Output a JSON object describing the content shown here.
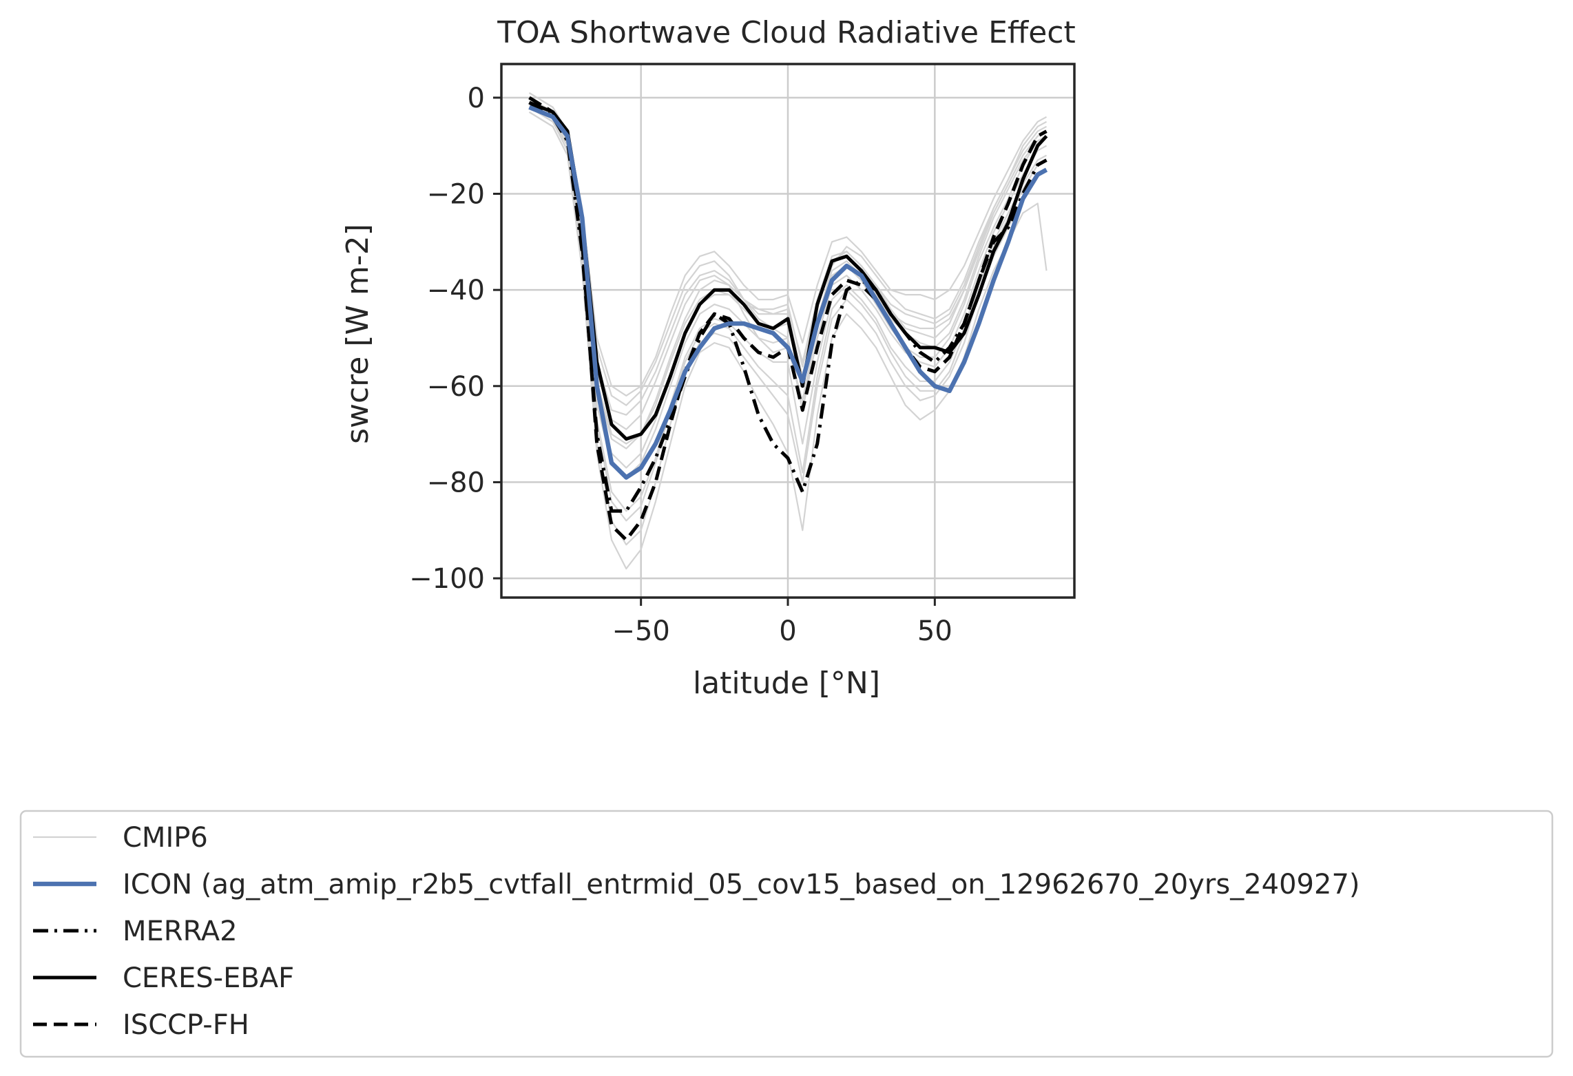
{
  "chart_data": {
    "type": "line",
    "title": "TOA Shortwave Cloud Radiative Effect",
    "xlabel": "latitude [°N]",
    "ylabel": "swcre [W m-2]",
    "xlim": [
      -97.5,
      97.5
    ],
    "ylim": [
      -104,
      7
    ],
    "xticks": [
      -50,
      0,
      50
    ],
    "xtick_labels": [
      "−50",
      "0",
      "50"
    ],
    "yticks": [
      0,
      -20,
      -40,
      -60,
      -80,
      -100
    ],
    "ytick_labels": [
      "0",
      "−20",
      "−40",
      "−60",
      "−80",
      "−100"
    ],
    "grid": true,
    "legend_position": "bottom",
    "colors": {
      "cmip6": "#d3d3d3",
      "icon": "#4c72b0",
      "obs": "#000000",
      "grid": "#cccccc",
      "axes": "#262626"
    },
    "legend": [
      {
        "label": "CMIP6",
        "key": "cmip6"
      },
      {
        "label": "ICON (ag_atm_amip_r2b5_cvtfall_entrmid_05_cov15_based_on_12962670_20yrs_240927)",
        "key": "icon"
      },
      {
        "label": "MERRA2",
        "key": "merra2"
      },
      {
        "label": "CERES-EBAF",
        "key": "ceres"
      },
      {
        "label": "ISCCP-FH",
        "key": "isccp"
      }
    ],
    "x": [
      -88,
      -80,
      -75,
      -70,
      -65,
      -60,
      -55,
      -50,
      -45,
      -40,
      -35,
      -30,
      -25,
      -20,
      -15,
      -10,
      -5,
      0,
      5,
      10,
      15,
      20,
      25,
      30,
      35,
      40,
      45,
      50,
      55,
      60,
      65,
      70,
      75,
      80,
      85,
      88
    ],
    "series": [
      {
        "name": "ICON (ag_atm_amip_r2b5_cvtfall_entrmid_05_cov15_based_on_12962670_20yrs_240927)",
        "key": "icon",
        "style": "solid",
        "values": [
          -2,
          -4,
          -8,
          -25,
          -60,
          -76,
          -79,
          -77,
          -72,
          -65,
          -57,
          -52,
          -48,
          -47,
          -47,
          -48,
          -49,
          -52,
          -59,
          -47,
          -38,
          -35,
          -37,
          -42,
          -47,
          -52,
          -57,
          -60,
          -61,
          -55,
          -47,
          -38,
          -30,
          -21,
          -16,
          -15
        ]
      },
      {
        "name": "CERES-EBAF",
        "key": "ceres",
        "style": "solid",
        "values": [
          -1,
          -3,
          -7,
          -25,
          -55,
          -68,
          -71,
          -70,
          -66,
          -58,
          -49,
          -43,
          -40,
          -40,
          -43,
          -47,
          -48,
          -46,
          -60,
          -43,
          -34,
          -33,
          -36,
          -40,
          -45,
          -49,
          -52,
          -52,
          -53,
          -49,
          -41,
          -32,
          -26,
          -17,
          -10,
          -8
        ]
      },
      {
        "name": "MERRA2",
        "key": "merra2",
        "style": "dashdot",
        "values": [
          -1,
          -4,
          -9,
          -32,
          -70,
          -86,
          -86,
          -81,
          -75,
          -67,
          -58,
          -50,
          -45,
          -47,
          -56,
          -66,
          -72,
          -75,
          -82,
          -72,
          -51,
          -40,
          -38,
          -40,
          -45,
          -49,
          -53,
          -55,
          -52,
          -47,
          -38,
          -30,
          -27,
          -20,
          -14,
          -13
        ]
      },
      {
        "name": "ISCCP-FH",
        "key": "isccp",
        "style": "dashed",
        "values": [
          0,
          -3,
          -7,
          -30,
          -72,
          -89,
          -92,
          -88,
          -80,
          -68,
          -57,
          -49,
          -45,
          -46,
          -50,
          -53,
          -54,
          -52,
          -65,
          -52,
          -41,
          -38,
          -39,
          -42,
          -47,
          -52,
          -56,
          -57,
          -54,
          -47,
          -38,
          -29,
          -22,
          -14,
          -8,
          -7
        ]
      }
    ],
    "cmip6_values": [
      [
        1,
        -2,
        -7,
        -23,
        -50,
        -60,
        -62,
        -60,
        -54,
        -45,
        -37,
        -33,
        -32,
        -35,
        -39,
        -42,
        -42,
        -41,
        -51,
        -39,
        -30,
        -29,
        -32,
        -36,
        -40,
        -41,
        -41,
        -42,
        -40,
        -35,
        -28,
        -21,
        -15,
        -9,
        -5,
        -4
      ],
      [
        0,
        -3,
        -8,
        -25,
        -55,
        -65,
        -66,
        -63,
        -57,
        -49,
        -41,
        -37,
        -36,
        -38,
        -42,
        -45,
        -45,
        -44,
        -55,
        -42,
        -33,
        -32,
        -35,
        -39,
        -43,
        -45,
        -46,
        -47,
        -45,
        -39,
        -31,
        -23,
        -17,
        -11,
        -7,
        -6
      ],
      [
        -1,
        -4,
        -9,
        -28,
        -60,
        -71,
        -73,
        -70,
        -64,
        -55,
        -47,
        -42,
        -40,
        -41,
        -44,
        -47,
        -48,
        -47,
        -60,
        -46,
        -36,
        -34,
        -37,
        -41,
        -46,
        -49,
        -51,
        -52,
        -49,
        -42,
        -33,
        -25,
        -19,
        -13,
        -9,
        -8
      ],
      [
        -2,
        -5,
        -10,
        -30,
        -64,
        -76,
        -79,
        -76,
        -69,
        -60,
        -51,
        -45,
        -43,
        -44,
        -47,
        -50,
        -51,
        -50,
        -65,
        -50,
        -39,
        -37,
        -40,
        -44,
        -49,
        -53,
        -55,
        -56,
        -52,
        -45,
        -36,
        -28,
        -22,
        -16,
        -11,
        -10
      ],
      [
        -2,
        -5,
        -11,
        -32,
        -67,
        -82,
        -86,
        -83,
        -75,
        -64,
        -54,
        -48,
        -46,
        -47,
        -50,
        -53,
        -55,
        -55,
        -72,
        -55,
        -42,
        -39,
        -42,
        -46,
        -52,
        -56,
        -59,
        -59,
        -55,
        -48,
        -38,
        -30,
        -24,
        -18,
        -13,
        -12
      ],
      [
        -3,
        -6,
        -12,
        -35,
        -72,
        -88,
        -93,
        -90,
        -80,
        -68,
        -57,
        -51,
        -49,
        -50,
        -54,
        -58,
        -62,
        -66,
        -80,
        -60,
        -46,
        -42,
        -45,
        -49,
        -55,
        -60,
        -63,
        -62,
        -58,
        -51,
        -41,
        -33,
        -27,
        -21,
        -16,
        -15
      ],
      [
        -3,
        -6,
        -12,
        -36,
        -74,
        -92,
        -98,
        -94,
        -84,
        -72,
        -60,
        -53,
        -51,
        -52,
        -57,
        -63,
        -68,
        -74,
        -90,
        -66,
        -50,
        -45,
        -48,
        -52,
        -58,
        -64,
        -67,
        -65,
        -61,
        -54,
        -44,
        -36,
        -30,
        -24,
        -22,
        -36
      ],
      [
        0,
        -3,
        -8,
        -26,
        -57,
        -67,
        -69,
        -66,
        -59,
        -51,
        -43,
        -38,
        -37,
        -39,
        -45,
        -50,
        -53,
        -52,
        -63,
        -48,
        -37,
        -35,
        -38,
        -43,
        -48,
        -52,
        -54,
        -54,
        -50,
        -43,
        -34,
        -27,
        -21,
        -14,
        -9,
        -8
      ],
      [
        -1,
        -4,
        -10,
        -29,
        -62,
        -74,
        -77,
        -74,
        -67,
        -58,
        -49,
        -43,
        -41,
        -41,
        -43,
        -44,
        -45,
        -45,
        -58,
        -44,
        -34,
        -32,
        -35,
        -39,
        -44,
        -48,
        -49,
        -50,
        -47,
        -40,
        -32,
        -24,
        -18,
        -12,
        -8,
        -7
      ],
      [
        1,
        -2,
        -7,
        -24,
        -52,
        -62,
        -64,
        -61,
        -55,
        -47,
        -39,
        -35,
        -34,
        -37,
        -42,
        -46,
        -48,
        -50,
        -65,
        -47,
        -35,
        -31,
        -33,
        -37,
        -41,
        -44,
        -45,
        -46,
        -44,
        -38,
        -30,
        -23,
        -17,
        -10,
        -6,
        -5
      ],
      [
        -1,
        -4,
        -9,
        -27,
        -59,
        -70,
        -72,
        -70,
        -63,
        -54,
        -46,
        -40,
        -38,
        -39,
        -42,
        -44,
        -44,
        -43,
        -56,
        -43,
        -34,
        -33,
        -36,
        -40,
        -45,
        -47,
        -48,
        -48,
        -46,
        -40,
        -31,
        -24,
        -18,
        -12,
        -8,
        -7
      ],
      [
        -2,
        -5,
        -11,
        -33,
        -68,
        -84,
        -88,
        -85,
        -76,
        -65,
        -55,
        -49,
        -47,
        -48,
        -52,
        -56,
        -59,
        -62,
        -78,
        -58,
        -44,
        -40,
        -43,
        -47,
        -53,
        -58,
        -61,
        -61,
        -57,
        -49,
        -39,
        -31,
        -25,
        -19,
        -14,
        -13
      ]
    ]
  }
}
